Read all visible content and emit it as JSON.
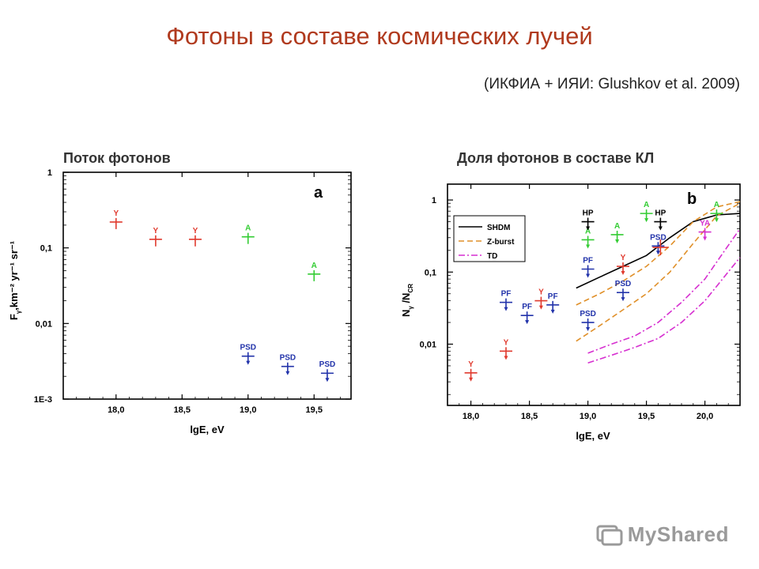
{
  "title": "Фотоны в составе космических лучей",
  "subtitle": "(ИКФИА + ИЯИ: Glushkov et al. 2009)",
  "left_caption": "Поток фотонов",
  "right_caption": "Доля фотонов в составе КЛ",
  "watermark": "MyShared",
  "colors": {
    "red": "#e03a2e",
    "green": "#33cc33",
    "blue": "#2233aa",
    "magenta": "#d62fd0",
    "orange": "#e0902a",
    "title": "#b03a1e"
  },
  "chart_data": [
    {
      "type": "scatter",
      "panel_label": "a",
      "xlabel": "lgE, eV",
      "ylabel": "F",
      "ylabel_sub": "γ",
      "ylabel_rest": ",km⁻² yr⁻¹ sr⁻¹",
      "xlim": [
        17.6,
        19.78
      ],
      "ylim_log10": [
        -3,
        0
      ],
      "log_y": true,
      "xticks": [
        {
          "v": 18.0,
          "t": "18,0"
        },
        {
          "v": 18.5,
          "t": "18,5"
        },
        {
          "v": 19.0,
          "t": "19,0"
        },
        {
          "v": 19.5,
          "t": "19,5"
        }
      ],
      "yticks": [
        {
          "v": 0,
          "t": "1"
        },
        {
          "v": -1,
          "t": "0,1"
        },
        {
          "v": -2,
          "t": "0,01"
        },
        {
          "v": -3,
          "t": "1E-3"
        }
      ],
      "points": [
        {
          "x": 18.0,
          "y": 0.22,
          "label": "Y",
          "color": "red",
          "arrow": false
        },
        {
          "x": 18.3,
          "y": 0.13,
          "label": "Y",
          "color": "red",
          "arrow": false
        },
        {
          "x": 18.6,
          "y": 0.13,
          "label": "Y",
          "color": "red",
          "arrow": false
        },
        {
          "x": 19.0,
          "y": 0.14,
          "label": "A",
          "color": "green",
          "arrow": false
        },
        {
          "x": 19.5,
          "y": 0.045,
          "label": "A",
          "color": "green",
          "arrow": false
        },
        {
          "x": 19.0,
          "y": 0.0037,
          "label": "PSD",
          "color": "blue",
          "arrow": true
        },
        {
          "x": 19.3,
          "y": 0.0027,
          "label": "PSD",
          "color": "blue",
          "arrow": true
        },
        {
          "x": 19.6,
          "y": 0.0022,
          "label": "PSD",
          "color": "blue",
          "arrow": true
        }
      ]
    },
    {
      "type": "scatter",
      "panel_label": "b",
      "xlabel": "lgE, eV",
      "ylabel": "N",
      "ylabel_sub": "γ",
      "ylabel_rest": " /N",
      "ylabel_sub2": "CR",
      "xlim": [
        17.8,
        20.3
      ],
      "ylim_log10": [
        -2.85,
        0.22
      ],
      "log_y": true,
      "xticks": [
        {
          "v": 18.0,
          "t": "18,0"
        },
        {
          "v": 18.5,
          "t": "18,5"
        },
        {
          "v": 19.0,
          "t": "19,0"
        },
        {
          "v": 19.5,
          "t": "19,5"
        },
        {
          "v": 20.0,
          "t": "20,0"
        }
      ],
      "yticks": [
        {
          "v": 0,
          "t": "1"
        },
        {
          "v": -1,
          "t": "0,1"
        },
        {
          "v": -2,
          "t": "0,01"
        }
      ],
      "legend": {
        "position": "top-left",
        "entries": [
          {
            "name": "SHDM",
            "color": "black",
            "dash": ""
          },
          {
            "name": "Z-burst",
            "color": "orange",
            "dash": "7,4"
          },
          {
            "name": "TD",
            "color": "magenta",
            "dash": "8,3,2,3"
          }
        ]
      },
      "points": [
        {
          "x": 18.0,
          "y": 0.004,
          "label": "Y",
          "color": "red",
          "arrow": true
        },
        {
          "x": 18.3,
          "y": 0.008,
          "label": "Y",
          "color": "red",
          "arrow": true
        },
        {
          "x": 18.6,
          "y": 0.04,
          "label": "Y",
          "color": "red",
          "arrow": true
        },
        {
          "x": 18.3,
          "y": 0.038,
          "label": "PF",
          "color": "blue",
          "arrow": true
        },
        {
          "x": 18.48,
          "y": 0.025,
          "label": "PF",
          "color": "blue",
          "arrow": true
        },
        {
          "x": 18.7,
          "y": 0.035,
          "label": "PF",
          "color": "blue",
          "arrow": true
        },
        {
          "x": 19.0,
          "y": 0.11,
          "label": "PF",
          "color": "blue",
          "arrow": true
        },
        {
          "x": 19.0,
          "y": 0.02,
          "label": "PSD",
          "color": "blue",
          "arrow": true
        },
        {
          "x": 19.3,
          "y": 0.052,
          "label": "PSD",
          "color": "blue",
          "arrow": true
        },
        {
          "x": 19.6,
          "y": 0.23,
          "label": "PSD",
          "color": "blue",
          "arrow": true
        },
        {
          "x": 19.0,
          "y": 0.28,
          "label": "A",
          "color": "green",
          "arrow": true
        },
        {
          "x": 19.25,
          "y": 0.33,
          "label": "A",
          "color": "green",
          "arrow": true
        },
        {
          "x": 19.5,
          "y": 0.65,
          "label": "A",
          "color": "green",
          "arrow": true
        },
        {
          "x": 20.1,
          "y": 0.65,
          "label": "A",
          "color": "green",
          "arrow": true
        },
        {
          "x": 19.0,
          "y": 0.5,
          "label": "HP",
          "color": "black",
          "arrow": true
        },
        {
          "x": 19.62,
          "y": 0.5,
          "label": "HP",
          "color": "black",
          "arrow": true
        },
        {
          "x": 19.3,
          "y": 0.12,
          "label": "Y",
          "color": "red",
          "arrow": true
        },
        {
          "x": 19.62,
          "y": 0.22,
          "label": "",
          "color": "red",
          "arrow": false,
          "big": true
        },
        {
          "x": 20.0,
          "y": 0.36,
          "label": "YA",
          "color": "magenta",
          "arrow": true
        }
      ],
      "series": [
        {
          "name": "SHDM",
          "color": "black",
          "dash": "",
          "x": [
            18.9,
            19.1,
            19.3,
            19.5,
            19.7,
            19.9,
            20.1,
            20.3
          ],
          "y": [
            0.06,
            0.085,
            0.12,
            0.17,
            0.3,
            0.5,
            0.62,
            0.65
          ]
        },
        {
          "name": "Z-burst",
          "color": "orange",
          "dash": "7,4",
          "x": [
            18.9,
            19.1,
            19.3,
            19.5,
            19.7,
            19.9,
            20.1,
            20.3
          ],
          "y": [
            0.035,
            0.05,
            0.075,
            0.12,
            0.23,
            0.5,
            0.8,
            0.95
          ]
        },
        {
          "name": "Z-burst",
          "color": "orange",
          "dash": "7,4",
          "x": [
            18.9,
            19.1,
            19.3,
            19.5,
            19.7,
            19.9,
            20.1,
            20.3
          ],
          "y": [
            0.011,
            0.018,
            0.03,
            0.05,
            0.1,
            0.25,
            0.6,
            0.9
          ]
        },
        {
          "name": "TD",
          "color": "magenta",
          "dash": "8,3,2,3",
          "x": [
            19.0,
            19.2,
            19.4,
            19.6,
            19.8,
            20.0,
            20.15,
            20.3
          ],
          "y": [
            0.0075,
            0.01,
            0.013,
            0.02,
            0.038,
            0.08,
            0.18,
            0.4
          ]
        },
        {
          "name": "TD",
          "color": "magenta",
          "dash": "8,3,2,3",
          "x": [
            19.0,
            19.2,
            19.4,
            19.6,
            19.8,
            20.0,
            20.15,
            20.3
          ],
          "y": [
            0.0055,
            0.007,
            0.009,
            0.012,
            0.02,
            0.04,
            0.08,
            0.16
          ]
        }
      ]
    }
  ]
}
